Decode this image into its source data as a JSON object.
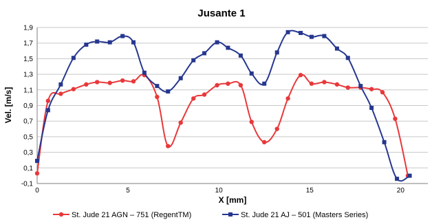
{
  "chart_data": {
    "type": "line",
    "title": "Jusante 1",
    "xlabel": "X [mm]",
    "ylabel": "Vel. [m/s]",
    "xlim": [
      0,
      21.5
    ],
    "ylim": [
      -0.1,
      1.9
    ],
    "xticks": [
      0,
      5,
      10,
      15,
      20
    ],
    "yticks": [
      -0.1,
      0.1,
      0.3,
      0.5,
      0.7,
      0.9,
      1.1,
      1.3,
      1.5,
      1.7,
      1.9
    ],
    "ytick_labels": [
      "-0,1",
      "0,1",
      "0,3",
      "0,5",
      "0,7",
      "0,9",
      "1,1",
      "1,3",
      "1,5",
      "1,7",
      "1,9"
    ],
    "grid": "horizontal",
    "legend_position": "bottom",
    "series": [
      {
        "name": "St. Jude 21 AGN – 751 (RegentTM)",
        "color": "#e8383a",
        "marker": "circle",
        "x": [
          0,
          0.6,
          1.3,
          2.0,
          2.7,
          3.3,
          4.0,
          4.7,
          5.3,
          5.9,
          6.6,
          7.2,
          7.9,
          8.6,
          9.2,
          9.9,
          10.5,
          11.2,
          11.8,
          12.5,
          13.2,
          13.8,
          14.5,
          15.1,
          15.8,
          16.5,
          17.1,
          17.8,
          18.4,
          19.0,
          19.7,
          20.4
        ],
        "y": [
          0.03,
          0.96,
          1.05,
          1.11,
          1.17,
          1.2,
          1.19,
          1.22,
          1.21,
          1.29,
          1.01,
          0.38,
          0.68,
          0.99,
          1.04,
          1.16,
          1.18,
          1.16,
          0.69,
          0.43,
          0.6,
          0.99,
          1.29,
          1.18,
          1.2,
          1.17,
          1.13,
          1.13,
          1.11,
          1.07,
          0.73,
          0.0
        ]
      },
      {
        "name": "St. Jude 21 AJ – 501 (Masters Series)",
        "color": "#26378f",
        "marker": "square",
        "x": [
          0,
          0.6,
          1.3,
          2.0,
          2.7,
          3.3,
          4.0,
          4.7,
          5.3,
          5.9,
          6.6,
          7.2,
          7.9,
          8.6,
          9.2,
          9.9,
          10.5,
          11.2,
          11.8,
          12.5,
          13.2,
          13.8,
          14.5,
          15.1,
          15.8,
          16.5,
          17.1,
          17.8,
          18.4,
          19.1,
          19.8,
          20.5
        ],
        "y": [
          0.19,
          0.84,
          1.17,
          1.51,
          1.68,
          1.72,
          1.71,
          1.79,
          1.71,
          1.32,
          1.15,
          1.08,
          1.25,
          1.48,
          1.57,
          1.71,
          1.64,
          1.54,
          1.31,
          1.18,
          1.58,
          1.84,
          1.83,
          1.78,
          1.79,
          1.63,
          1.51,
          1.15,
          0.87,
          0.43,
          -0.04,
          0.0
        ]
      }
    ]
  }
}
